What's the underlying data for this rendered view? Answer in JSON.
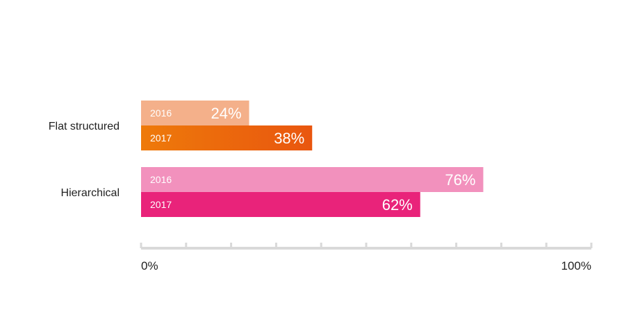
{
  "chart_data": {
    "type": "bar",
    "orientation": "horizontal",
    "categories": [
      "Flat structured",
      "Hierarchical"
    ],
    "series": [
      {
        "name": "2016",
        "values": [
          24,
          76
        ],
        "value_labels": [
          "24%",
          "76%"
        ],
        "colors": [
          "#f4b08a",
          "#f291bd"
        ]
      },
      {
        "name": "2017",
        "values": [
          38,
          62
        ],
        "value_labels": [
          "38%",
          "62%"
        ],
        "colors": [
          "#ec6a0c",
          "#e9237a"
        ]
      }
    ],
    "title": "",
    "xlabel": "",
    "ylabel": "",
    "xlim": [
      0,
      100
    ],
    "x_tick_labels": [
      "0%",
      "100%"
    ],
    "grid": false,
    "legend": "none"
  }
}
